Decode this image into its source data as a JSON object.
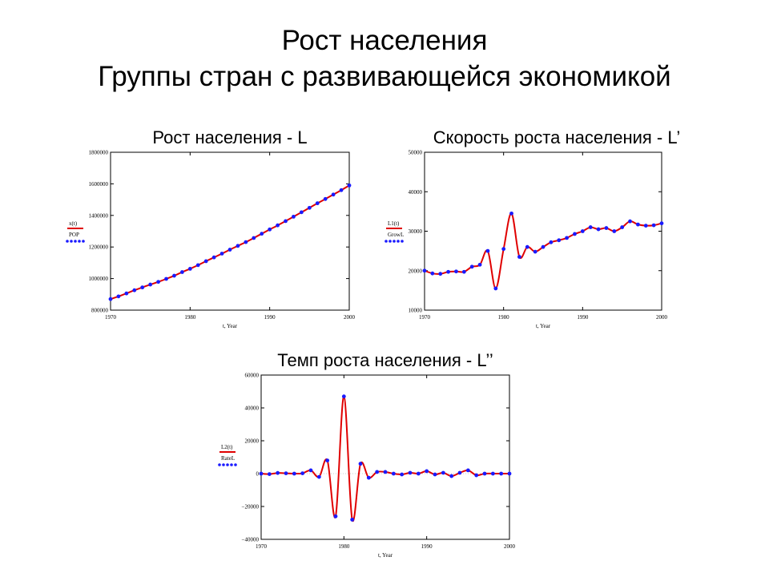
{
  "slide": {
    "title_line1": "Рост населения",
    "title_line2": "Группы стран с развивающейся экономикой"
  },
  "colors": {
    "line": "#e00000",
    "points": "#1a1aff",
    "frame": "#000000"
  },
  "chart_data": [
    {
      "type": "line",
      "title": "Рост населения - L",
      "xlabel": "t, Year",
      "ylabel": "",
      "xlim": [
        1970,
        2000
      ],
      "ylim": [
        800000,
        1800000
      ],
      "x_ticks": [
        "1970",
        "1980",
        "1990",
        "2000"
      ],
      "y_ticks": [
        "800000",
        "1000000",
        "1200000",
        "1400000",
        "1600000",
        "1800000"
      ],
      "legend": {
        "placement": "left",
        "line_label": "x(t)",
        "points_label": "POP"
      },
      "x": [
        1970,
        1971,
        1972,
        1973,
        1974,
        1975,
        1976,
        1977,
        1978,
        1979,
        1980,
        1981,
        1982,
        1983,
        1984,
        1985,
        1986,
        1987,
        1988,
        1989,
        1990,
        1991,
        1992,
        1993,
        1994,
        1995,
        1996,
        1997,
        1998,
        1999,
        2000
      ],
      "series": [
        {
          "name": "x(t)",
          "style": "line",
          "values": [
            870000,
            887000,
            906000,
            926000,
            944000,
            962000,
            979000,
            998000,
            1018000,
            1041000,
            1062000,
            1085000,
            1110000,
            1134000,
            1158000,
            1183000,
            1207000,
            1231000,
            1257000,
            1284000,
            1311000,
            1337000,
            1364000,
            1392000,
            1420000,
            1448000,
            1477000,
            1504000,
            1532000,
            1560000,
            1590000
          ]
        },
        {
          "name": "POP",
          "style": "points",
          "values": [
            870000,
            887000,
            906000,
            926000,
            944000,
            962000,
            979000,
            998000,
            1018000,
            1041000,
            1062000,
            1085000,
            1110000,
            1134000,
            1158000,
            1183000,
            1207000,
            1231000,
            1257000,
            1284000,
            1311000,
            1337000,
            1364000,
            1392000,
            1420000,
            1448000,
            1477000,
            1504000,
            1532000,
            1560000,
            1590000
          ]
        }
      ]
    },
    {
      "type": "line",
      "title": "Скорость роста населения - L’",
      "xlabel": "t, Year",
      "ylabel": "",
      "xlim": [
        1970,
        2000
      ],
      "ylim": [
        10000,
        50000
      ],
      "x_ticks": [
        "1970",
        "1980",
        "1990",
        "2000"
      ],
      "y_ticks": [
        "10000",
        "20000",
        "30000",
        "40000",
        "50000"
      ],
      "legend": {
        "placement": "left",
        "line_label": "L1(t)",
        "points_label": "GrowL"
      },
      "x": [
        1970,
        1971,
        1972,
        1973,
        1974,
        1975,
        1976,
        1977,
        1978,
        1979,
        1980,
        1981,
        1982,
        1983,
        1984,
        1985,
        1986,
        1987,
        1988,
        1989,
        1990,
        1991,
        1992,
        1993,
        1994,
        1995,
        1996,
        1997,
        1998,
        1999,
        2000
      ],
      "series": [
        {
          "name": "L1(t)",
          "style": "line",
          "values": [
            20000,
            19300,
            19200,
            19700,
            19800,
            19700,
            21000,
            21500,
            25000,
            15500,
            25500,
            34500,
            23500,
            26000,
            24800,
            26000,
            27200,
            27700,
            28300,
            29300,
            30000,
            31000,
            30500,
            30800,
            30000,
            31000,
            32500,
            31700,
            31400,
            31500,
            32000
          ]
        },
        {
          "name": "GrowL",
          "style": "points",
          "values": [
            20000,
            19300,
            19200,
            19700,
            19800,
            19700,
            21000,
            21500,
            25000,
            15500,
            25500,
            34500,
            23500,
            26000,
            24800,
            26000,
            27200,
            27700,
            28300,
            29300,
            30000,
            31000,
            30500,
            30800,
            30000,
            31000,
            32500,
            31700,
            31400,
            31500,
            32000
          ]
        }
      ]
    },
    {
      "type": "line",
      "title": "Темп роста населения - L’’",
      "xlabel": "t, Year",
      "ylabel": "",
      "xlim": [
        1970,
        2000
      ],
      "ylim": [
        -40000,
        60000
      ],
      "x_ticks": [
        "1970",
        "1980",
        "1990",
        "2000"
      ],
      "y_ticks": [
        "−40000",
        "−20000",
        "0",
        "20000",
        "40000",
        "60000"
      ],
      "legend": {
        "placement": "left",
        "line_label": "L2(t)",
        "points_label": "RateL"
      },
      "x": [
        1970,
        1971,
        1972,
        1973,
        1974,
        1975,
        1976,
        1977,
        1978,
        1979,
        1980,
        1981,
        1982,
        1983,
        1984,
        1985,
        1986,
        1987,
        1988,
        1989,
        1990,
        1991,
        1992,
        1993,
        1994,
        1995,
        1996,
        1997,
        1998,
        1999,
        2000
      ],
      "series": [
        {
          "name": "L2(t)",
          "style": "line",
          "values": [
            0,
            -300,
            400,
            200,
            0,
            200,
            2000,
            -2000,
            8000,
            -26000,
            47000,
            -28000,
            6000,
            -2500,
            1000,
            1000,
            0,
            -500,
            500,
            0,
            1500,
            -500,
            500,
            -1500,
            500,
            2000,
            -1000,
            0,
            0,
            0,
            0
          ]
        },
        {
          "name": "RateL",
          "style": "points",
          "values": [
            0,
            -300,
            400,
            200,
            0,
            200,
            2000,
            -2000,
            8000,
            -26000,
            47000,
            -28000,
            6000,
            -2500,
            1000,
            1000,
            0,
            -500,
            500,
            0,
            1500,
            -500,
            500,
            -1500,
            500,
            2000,
            -1000,
            0,
            0,
            0,
            0
          ]
        }
      ]
    }
  ]
}
